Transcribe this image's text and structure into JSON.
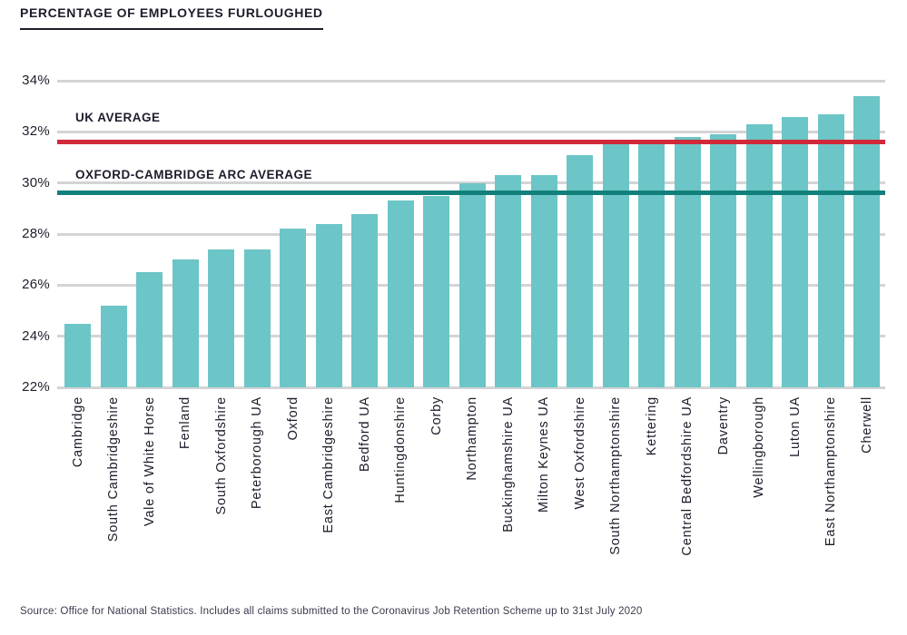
{
  "title": "PERCENTAGE OF EMPLOYEES FURLOUGHED",
  "source": "Source: Office for National Statistics. Includes all claims submitted to the Coronavirus Job Retention Scheme up to 31st July 2020",
  "colors": {
    "bar": "#6cc5c6",
    "uk_average_line": "#d1293a",
    "arc_average_line": "#12807a",
    "gridline": "#d4d4d6",
    "text": "#1d1d2b",
    "source_text": "#3a3a4e"
  },
  "chart_data": {
    "type": "bar",
    "title": "PERCENTAGE OF EMPLOYEES FURLOUGHED",
    "categories": [
      "Cambridge",
      "South Cambridgeshire",
      "Vale of White Horse",
      "Fenland",
      "South Oxfordshire",
      "Peterborough UA",
      "Oxford",
      "East Cambridgeshire",
      "Bedford UA",
      "Huntingdonshire",
      "Corby",
      "Northampton",
      "Buckinghamshire UA",
      "Milton Keynes UA",
      "West Oxfordshire",
      "South Northamptonshire",
      "Kettering",
      "Central Bedfordshire UA",
      "Daventry",
      "Wellingborough",
      "Luton UA",
      "East Northamptonshire",
      "Cherwell"
    ],
    "values": [
      24.5,
      25.2,
      26.5,
      27.0,
      27.4,
      27.4,
      28.2,
      28.4,
      28.8,
      29.3,
      29.5,
      30.0,
      30.3,
      30.3,
      31.1,
      31.5,
      31.5,
      31.8,
      31.9,
      32.3,
      32.6,
      32.7,
      33.4
    ],
    "xlabel": "",
    "ylabel": "",
    "ylim": [
      22,
      34.5
    ],
    "yticks": [
      22,
      24,
      26,
      28,
      30,
      32,
      34
    ],
    "ytick_suffix": "%",
    "grid": true,
    "legend_position": "none",
    "reference_lines": [
      {
        "label": "UK AVERAGE",
        "value": 31.6,
        "color": "#d1293a"
      },
      {
        "label": "OXFORD-CAMBRIDGE ARC AVERAGE",
        "value": 29.6,
        "color": "#12807a"
      }
    ]
  }
}
